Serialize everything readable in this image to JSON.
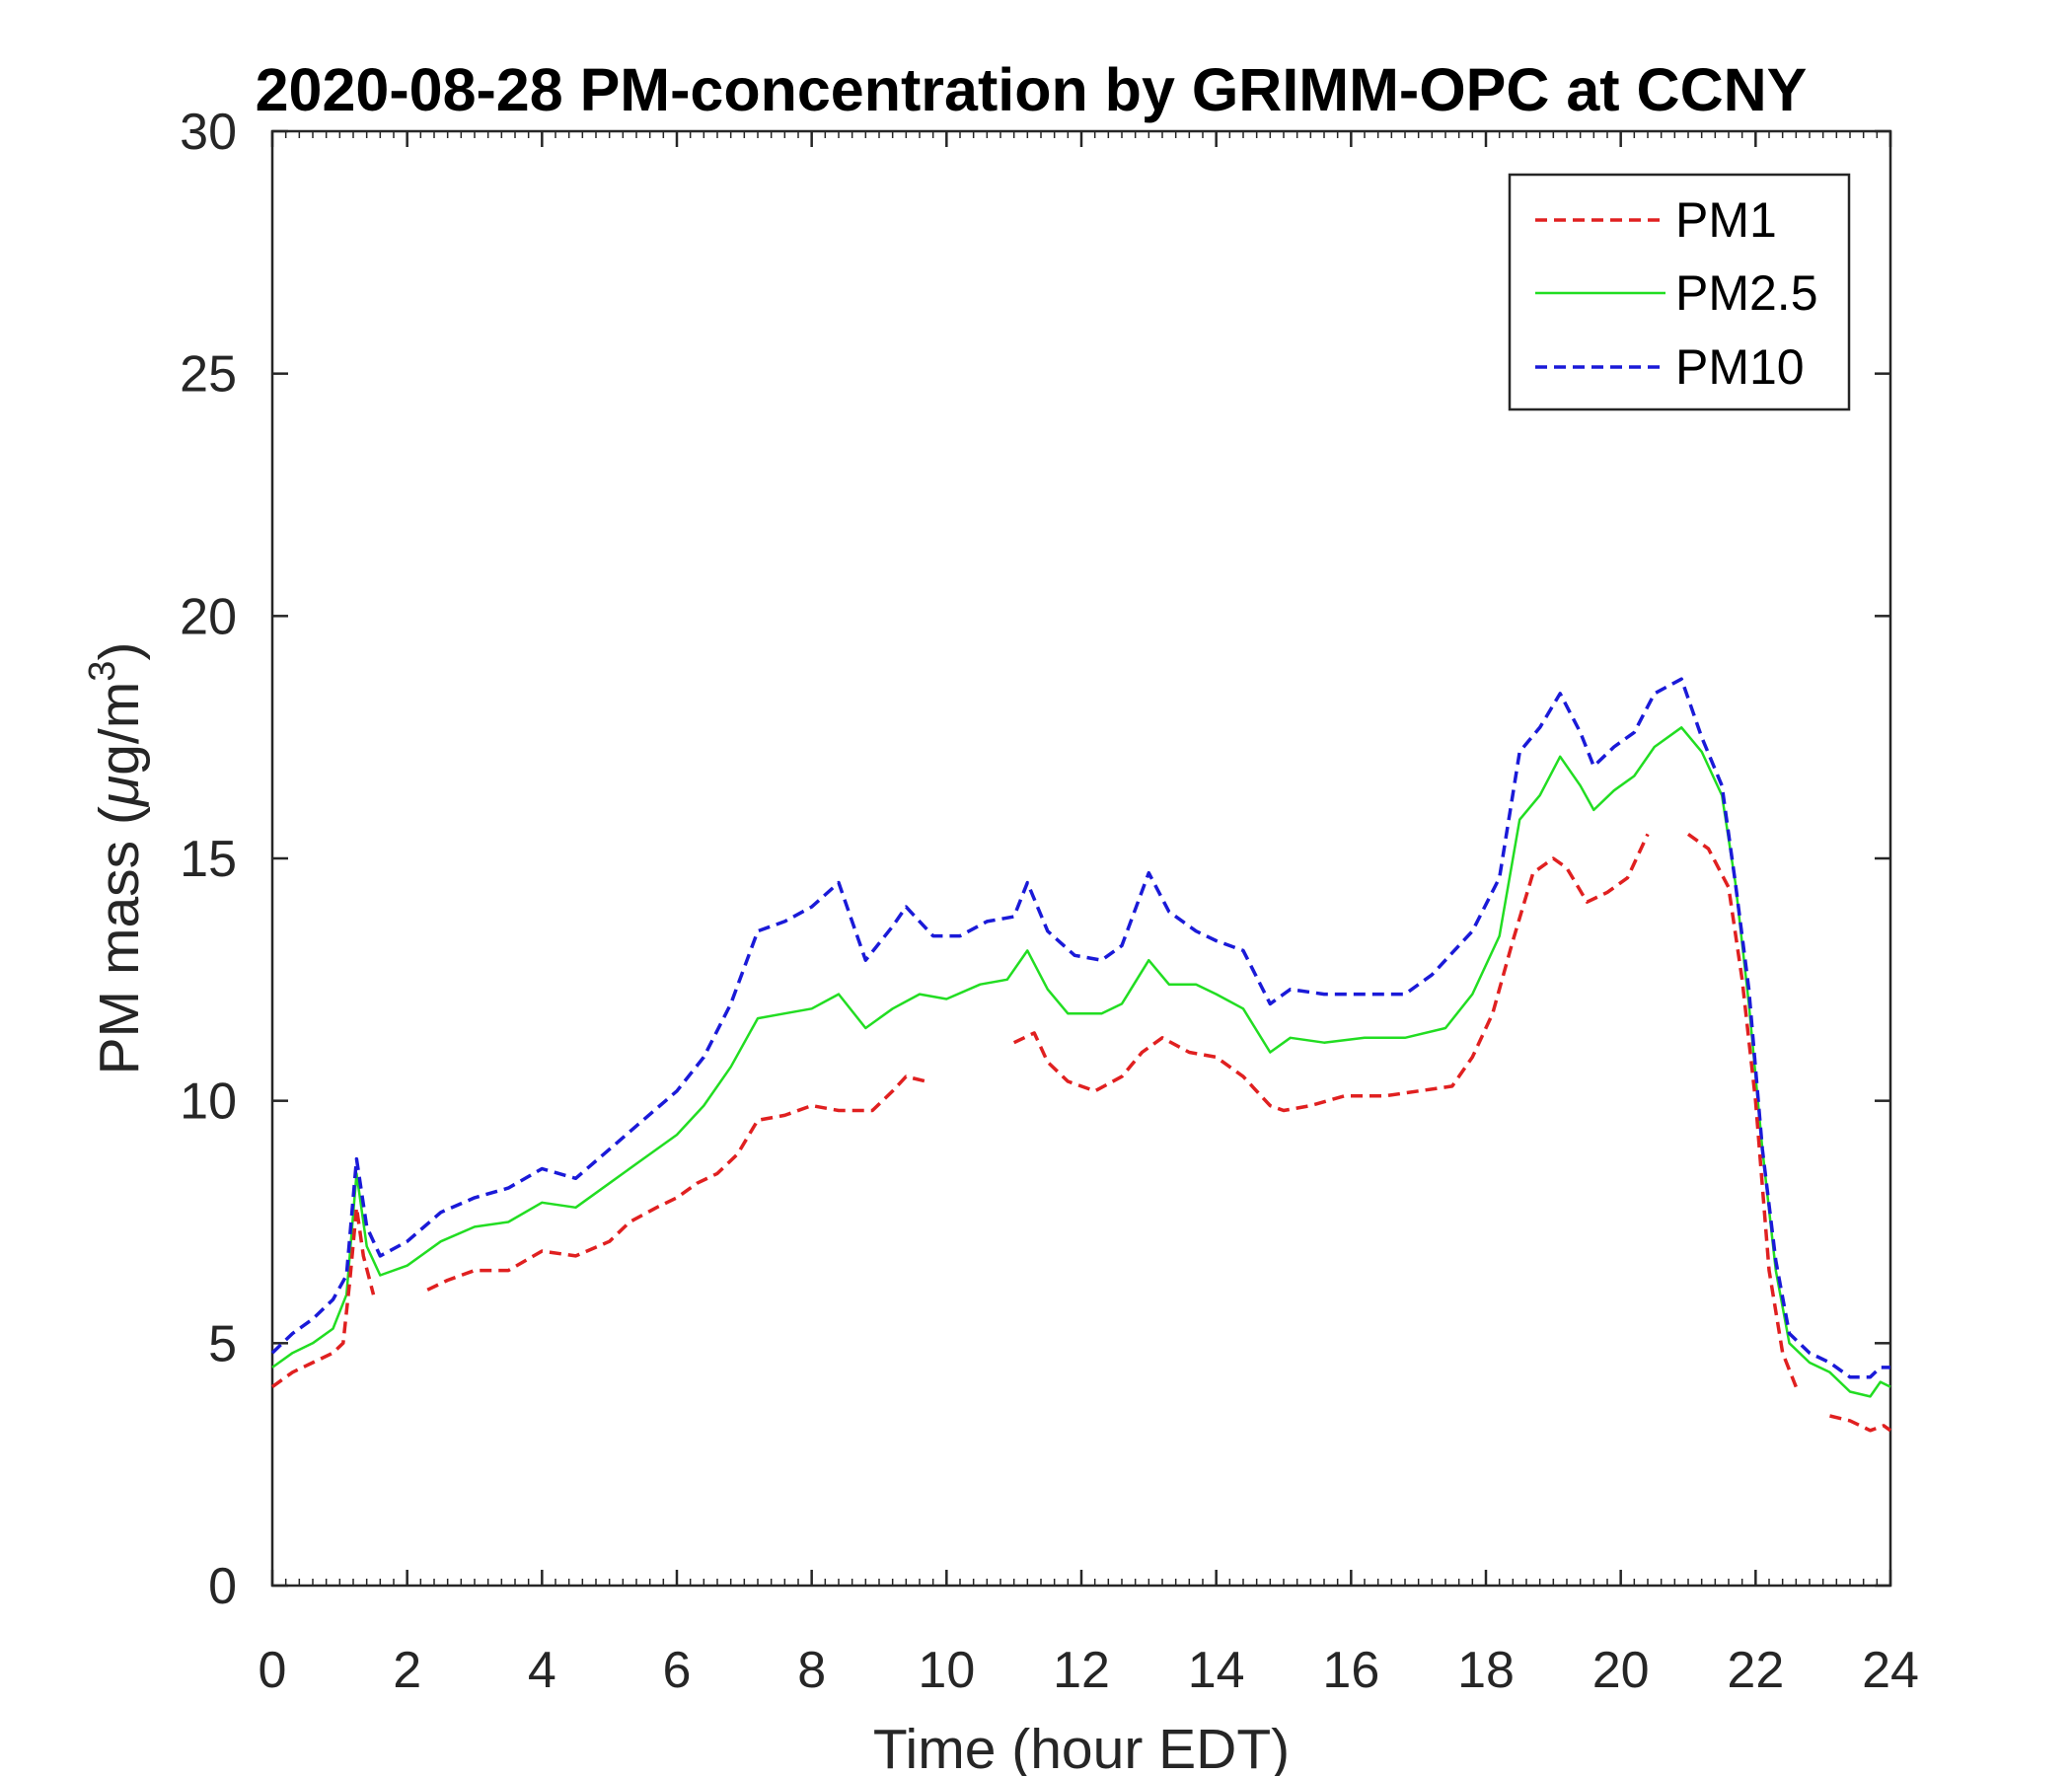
{
  "chart_data": {
    "type": "line",
    "title": "2020-08-28 PM-concentration by GRIMM-OPC at CCNY",
    "xlabel": "Time (hour EDT)",
    "ylabel": "PM mass (μg/m³)",
    "ylabel_parts": {
      "main": "PM mass (",
      "mu": "μ",
      "unit": "g/m",
      "sup": "3",
      "close": ")"
    },
    "xlim": [
      0,
      24
    ],
    "ylim": [
      0,
      30
    ],
    "xticks": [
      0,
      2,
      4,
      6,
      8,
      10,
      12,
      14,
      16,
      18,
      20,
      22,
      24
    ],
    "yticks": [
      0,
      5,
      10,
      15,
      20,
      25,
      30
    ],
    "xtick_labels": [
      "0",
      "2",
      "4",
      "6",
      "8",
      "10",
      "12",
      "14",
      "16",
      "18",
      "20",
      "22",
      "24"
    ],
    "ytick_labels": [
      "0",
      "5",
      "10",
      "15",
      "20",
      "25",
      "30"
    ],
    "grid": false,
    "legend_position": "top-right",
    "series": [
      {
        "name": "PM1",
        "color": "#e02020",
        "style": "dashed",
        "points": [
          [
            0.0,
            4.1
          ],
          [
            0.3,
            4.4
          ],
          [
            0.6,
            4.6
          ],
          [
            0.9,
            4.8
          ],
          [
            1.05,
            5.0
          ],
          [
            1.15,
            6.3
          ],
          [
            1.25,
            7.8
          ],
          [
            1.35,
            6.8
          ],
          [
            1.5,
            6.0
          ],
          [
            2.3,
            6.1
          ],
          [
            2.6,
            6.3
          ],
          [
            3.0,
            6.5
          ],
          [
            3.5,
            6.5
          ],
          [
            4.0,
            6.9
          ],
          [
            4.5,
            6.8
          ],
          [
            5.0,
            7.1
          ],
          [
            5.3,
            7.5
          ],
          [
            5.7,
            7.8
          ],
          [
            6.0,
            8.0
          ],
          [
            6.3,
            8.3
          ],
          [
            6.6,
            8.5
          ],
          [
            6.9,
            8.9
          ],
          [
            7.2,
            9.6
          ],
          [
            7.6,
            9.7
          ],
          [
            8.0,
            9.9
          ],
          [
            8.4,
            9.8
          ],
          [
            8.9,
            9.8
          ],
          [
            9.2,
            10.2
          ],
          [
            9.4,
            10.5
          ],
          [
            9.7,
            10.4
          ],
          [
            11.0,
            11.2
          ],
          [
            11.3,
            11.4
          ],
          [
            11.5,
            10.8
          ],
          [
            11.8,
            10.4
          ],
          [
            12.2,
            10.2
          ],
          [
            12.6,
            10.5
          ],
          [
            12.9,
            11.0
          ],
          [
            13.2,
            11.3
          ],
          [
            13.6,
            11.0
          ],
          [
            14.0,
            10.9
          ],
          [
            14.4,
            10.5
          ],
          [
            14.8,
            9.9
          ],
          [
            15.0,
            9.8
          ],
          [
            15.4,
            9.9
          ],
          [
            15.9,
            10.1
          ],
          [
            16.5,
            10.1
          ],
          [
            17.0,
            10.2
          ],
          [
            17.5,
            10.3
          ],
          [
            17.8,
            10.9
          ],
          [
            18.1,
            11.8
          ],
          [
            18.4,
            13.3
          ],
          [
            18.7,
            14.7
          ],
          [
            19.0,
            15.0
          ],
          [
            19.2,
            14.8
          ],
          [
            19.5,
            14.1
          ],
          [
            19.8,
            14.3
          ],
          [
            20.1,
            14.6
          ],
          [
            20.4,
            15.5
          ],
          [
            21.0,
            15.5
          ],
          [
            21.3,
            15.2
          ],
          [
            21.6,
            14.4
          ],
          [
            21.8,
            12.5
          ],
          [
            22.0,
            10.0
          ],
          [
            22.2,
            6.5
          ],
          [
            22.4,
            4.8
          ],
          [
            22.6,
            4.1
          ],
          [
            23.1,
            3.5
          ],
          [
            23.4,
            3.4
          ],
          [
            23.7,
            3.2
          ],
          [
            23.9,
            3.3
          ],
          [
            24.0,
            3.2
          ]
        ],
        "gaps": [
          [
            1.5,
            2.3
          ],
          [
            9.7,
            11.0
          ],
          [
            20.4,
            21.0
          ],
          [
            22.6,
            23.1
          ]
        ]
      },
      {
        "name": "PM2.5",
        "color": "#22dd22",
        "style": "solid",
        "points": [
          [
            0.0,
            4.5
          ],
          [
            0.3,
            4.8
          ],
          [
            0.6,
            5.0
          ],
          [
            0.9,
            5.3
          ],
          [
            1.1,
            6.0
          ],
          [
            1.25,
            8.5
          ],
          [
            1.4,
            7.0
          ],
          [
            1.6,
            6.4
          ],
          [
            2.0,
            6.6
          ],
          [
            2.5,
            7.1
          ],
          [
            3.0,
            7.4
          ],
          [
            3.5,
            7.5
          ],
          [
            4.0,
            7.9
          ],
          [
            4.5,
            7.8
          ],
          [
            5.0,
            8.3
          ],
          [
            5.5,
            8.8
          ],
          [
            6.0,
            9.3
          ],
          [
            6.4,
            9.9
          ],
          [
            6.8,
            10.7
          ],
          [
            7.2,
            11.7
          ],
          [
            7.6,
            11.8
          ],
          [
            8.0,
            11.9
          ],
          [
            8.4,
            12.2
          ],
          [
            8.8,
            11.5
          ],
          [
            9.2,
            11.9
          ],
          [
            9.6,
            12.2
          ],
          [
            10.0,
            12.1
          ],
          [
            10.5,
            12.4
          ],
          [
            10.9,
            12.5
          ],
          [
            11.2,
            13.1
          ],
          [
            11.5,
            12.3
          ],
          [
            11.8,
            11.8
          ],
          [
            12.3,
            11.8
          ],
          [
            12.6,
            12.0
          ],
          [
            13.0,
            12.9
          ],
          [
            13.3,
            12.4
          ],
          [
            13.7,
            12.4
          ],
          [
            14.0,
            12.2
          ],
          [
            14.4,
            11.9
          ],
          [
            14.8,
            11.0
          ],
          [
            15.1,
            11.3
          ],
          [
            15.6,
            11.2
          ],
          [
            16.2,
            11.3
          ],
          [
            16.8,
            11.3
          ],
          [
            17.4,
            11.5
          ],
          [
            17.8,
            12.2
          ],
          [
            18.2,
            13.4
          ],
          [
            18.5,
            15.8
          ],
          [
            18.8,
            16.3
          ],
          [
            19.1,
            17.1
          ],
          [
            19.4,
            16.5
          ],
          [
            19.6,
            16.0
          ],
          [
            19.9,
            16.4
          ],
          [
            20.2,
            16.7
          ],
          [
            20.5,
            17.3
          ],
          [
            20.9,
            17.7
          ],
          [
            21.2,
            17.2
          ],
          [
            21.5,
            16.3
          ],
          [
            21.7,
            14.5
          ],
          [
            21.9,
            12.0
          ],
          [
            22.1,
            9.0
          ],
          [
            22.3,
            6.5
          ],
          [
            22.5,
            5.0
          ],
          [
            22.8,
            4.6
          ],
          [
            23.1,
            4.4
          ],
          [
            23.4,
            4.0
          ],
          [
            23.7,
            3.9
          ],
          [
            23.85,
            4.2
          ],
          [
            24.0,
            4.1
          ]
        ]
      },
      {
        "name": "PM10",
        "color": "#1a1ad8",
        "style": "dashed",
        "points": [
          [
            0.0,
            4.8
          ],
          [
            0.3,
            5.2
          ],
          [
            0.6,
            5.5
          ],
          [
            0.9,
            5.9
          ],
          [
            1.1,
            6.4
          ],
          [
            1.25,
            8.8
          ],
          [
            1.4,
            7.4
          ],
          [
            1.6,
            6.8
          ],
          [
            2.0,
            7.1
          ],
          [
            2.5,
            7.7
          ],
          [
            3.0,
            8.0
          ],
          [
            3.5,
            8.2
          ],
          [
            4.0,
            8.6
          ],
          [
            4.5,
            8.4
          ],
          [
            5.0,
            9.0
          ],
          [
            5.5,
            9.6
          ],
          [
            6.0,
            10.2
          ],
          [
            6.4,
            10.9
          ],
          [
            6.8,
            12.0
          ],
          [
            7.2,
            13.5
          ],
          [
            7.6,
            13.7
          ],
          [
            8.0,
            14.0
          ],
          [
            8.4,
            14.5
          ],
          [
            8.8,
            12.9
          ],
          [
            9.2,
            13.6
          ],
          [
            9.4,
            14.0
          ],
          [
            9.8,
            13.4
          ],
          [
            10.2,
            13.4
          ],
          [
            10.6,
            13.7
          ],
          [
            11.0,
            13.8
          ],
          [
            11.2,
            14.5
          ],
          [
            11.5,
            13.5
          ],
          [
            11.9,
            13.0
          ],
          [
            12.3,
            12.9
          ],
          [
            12.6,
            13.2
          ],
          [
            13.0,
            14.7
          ],
          [
            13.3,
            13.9
          ],
          [
            13.7,
            13.5
          ],
          [
            14.0,
            13.3
          ],
          [
            14.4,
            13.1
          ],
          [
            14.8,
            12.0
          ],
          [
            15.1,
            12.3
          ],
          [
            15.6,
            12.2
          ],
          [
            16.2,
            12.2
          ],
          [
            16.8,
            12.2
          ],
          [
            17.2,
            12.6
          ],
          [
            17.8,
            13.5
          ],
          [
            18.2,
            14.6
          ],
          [
            18.5,
            17.2
          ],
          [
            18.8,
            17.7
          ],
          [
            19.1,
            18.4
          ],
          [
            19.4,
            17.6
          ],
          [
            19.6,
            16.9
          ],
          [
            19.9,
            17.3
          ],
          [
            20.2,
            17.6
          ],
          [
            20.5,
            18.4
          ],
          [
            20.9,
            18.7
          ],
          [
            21.2,
            17.5
          ],
          [
            21.5,
            16.5
          ],
          [
            21.7,
            14.5
          ],
          [
            21.9,
            12.3
          ],
          [
            22.1,
            9.0
          ],
          [
            22.3,
            6.7
          ],
          [
            22.5,
            5.2
          ],
          [
            22.8,
            4.8
          ],
          [
            23.1,
            4.6
          ],
          [
            23.4,
            4.3
          ],
          [
            23.7,
            4.3
          ],
          [
            23.85,
            4.5
          ],
          [
            24.0,
            4.5
          ]
        ]
      }
    ]
  }
}
